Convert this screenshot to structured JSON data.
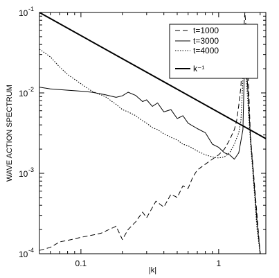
{
  "chart_data": {
    "type": "line",
    "title": "",
    "xlabel": "|k|",
    "ylabel": "WAVE ACTION SPECTRUM",
    "x_scale": "log",
    "y_scale": "log",
    "xlim": [
      0.05,
      2.2
    ],
    "ylim": [
      0.0001,
      0.1
    ],
    "grid": false,
    "legend_position": "top-right",
    "x_ticks": [
      {
        "value": 0.1,
        "label": "0.1"
      },
      {
        "value": 1,
        "label": "1"
      }
    ],
    "y_ticks": [
      {
        "value": 0.0001,
        "base": "10",
        "exp": "-4"
      },
      {
        "value": 0.001,
        "base": "10",
        "exp": "-3"
      },
      {
        "value": 0.01,
        "base": "10",
        "exp": "-2"
      },
      {
        "value": 0.1,
        "base": "10",
        "exp": "-1"
      }
    ],
    "series": [
      {
        "name": "t=1000",
        "dash": "dashed",
        "color": "#000000",
        "x": [
          0.05,
          0.06,
          0.07,
          0.085,
          0.1,
          0.12,
          0.14,
          0.16,
          0.18,
          0.2,
          0.22,
          0.25,
          0.28,
          0.3,
          0.35,
          0.4,
          0.45,
          0.5,
          0.55,
          0.6,
          0.65,
          0.7,
          0.8,
          0.9,
          1.0,
          1.1,
          1.2,
          1.3,
          1.35,
          1.4,
          1.45,
          1.5,
          1.55,
          1.6,
          1.65,
          1.7,
          1.8,
          1.9,
          2.0
        ],
        "y": [
          0.00011,
          0.00012,
          0.00014,
          0.00015,
          0.00016,
          0.00017,
          0.00018,
          0.0002,
          0.00022,
          0.00015,
          0.0002,
          0.00025,
          0.00033,
          0.00028,
          0.00045,
          0.00038,
          0.00055,
          0.0005,
          0.0007,
          0.00065,
          0.0009,
          0.0011,
          0.0013,
          0.0015,
          0.0017,
          0.002,
          0.0026,
          0.0035,
          0.0045,
          0.007,
          0.012,
          0.04,
          0.14,
          0.05,
          0.012,
          0.003,
          0.0009,
          0.0003,
          0.0001
        ]
      },
      {
        "name": "t=3000",
        "dash": "solid",
        "color": "#000000",
        "x": [
          0.05,
          0.06,
          0.07,
          0.08,
          0.1,
          0.12,
          0.15,
          0.18,
          0.2,
          0.22,
          0.25,
          0.28,
          0.3,
          0.33,
          0.36,
          0.4,
          0.45,
          0.5,
          0.55,
          0.6,
          0.7,
          0.8,
          0.9,
          1.0,
          1.1,
          1.2,
          1.3,
          1.4,
          1.5,
          1.55,
          1.6,
          1.65,
          1.7,
          1.8,
          1.9,
          2.0
        ],
        "y": [
          0.0118,
          0.0112,
          0.011,
          0.0108,
          0.0105,
          0.0102,
          0.0095,
          0.0088,
          0.0092,
          0.0102,
          0.0093,
          0.0078,
          0.0082,
          0.0068,
          0.0075,
          0.0058,
          0.0062,
          0.0048,
          0.0052,
          0.0042,
          0.0036,
          0.0032,
          0.0023,
          0.0021,
          0.0018,
          0.0017,
          0.0015,
          0.0018,
          0.0035,
          0.038,
          0.018,
          0.0075,
          0.0028,
          0.0008,
          0.00025,
          0.0001
        ]
      },
      {
        "name": "t=4000",
        "dash": "dotted",
        "color": "#000000",
        "x": [
          0.05,
          0.06,
          0.07,
          0.08,
          0.1,
          0.12,
          0.15,
          0.18,
          0.2,
          0.22,
          0.25,
          0.28,
          0.3,
          0.33,
          0.36,
          0.4,
          0.45,
          0.5,
          0.55,
          0.6,
          0.7,
          0.8,
          0.9,
          1.0,
          1.1,
          1.2,
          1.3,
          1.4,
          1.45,
          1.5,
          1.55,
          1.6,
          1.7,
          1.8,
          1.9,
          2.0
        ],
        "y": [
          0.035,
          0.028,
          0.021,
          0.017,
          0.013,
          0.0105,
          0.009,
          0.0072,
          0.0062,
          0.0058,
          0.0052,
          0.0045,
          0.0042,
          0.0037,
          0.0035,
          0.0031,
          0.0028,
          0.0026,
          0.0023,
          0.0022,
          0.0019,
          0.0017,
          0.0016,
          0.00155,
          0.0016,
          0.0018,
          0.0023,
          0.0032,
          0.0045,
          0.015,
          0.03,
          0.012,
          0.0025,
          0.0007,
          0.0002,
          0.0001
        ]
      },
      {
        "name": "k⁻¹",
        "dash": "solid-thick",
        "color": "#000000",
        "x": [
          0.05,
          2.2
        ],
        "y": [
          0.1,
          0.0027
        ]
      }
    ]
  }
}
